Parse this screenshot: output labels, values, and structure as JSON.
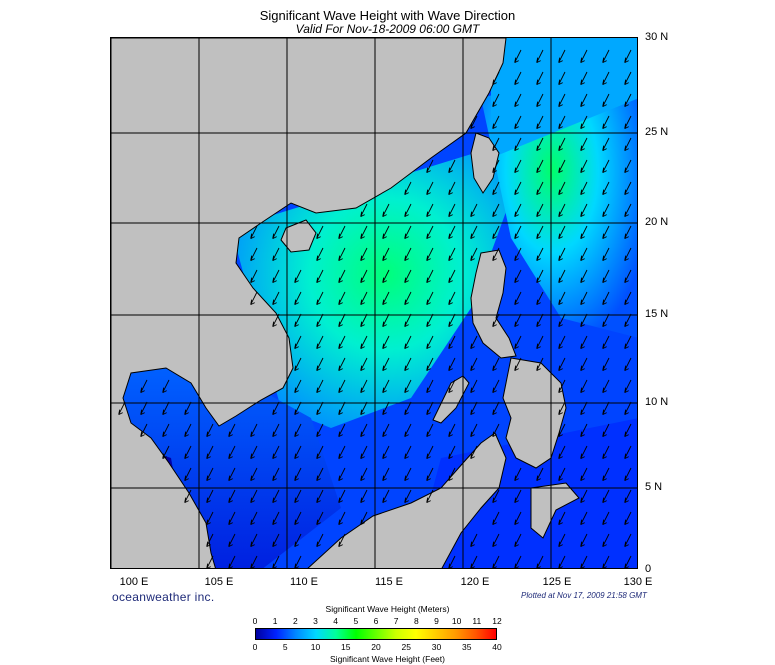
{
  "header": {
    "title": "Significant Wave Height with Wave Direction",
    "subtitle": "Valid For Nov-18-2009 06:00 GMT"
  },
  "map": {
    "lon_range": [
      100,
      130
    ],
    "lat_range": [
      0,
      30
    ],
    "lon_labels": [
      "100 E",
      "105 E",
      "110 E",
      "115 E",
      "120 E",
      "125 E",
      "130 E"
    ],
    "lat_labels": [
      "30 N",
      "25 N",
      "20 N",
      "15 N",
      "10 N",
      "5 N",
      "0"
    ],
    "grid_lon": [
      105,
      110,
      115,
      120,
      125
    ],
    "grid_lat": [
      5,
      10,
      15,
      20,
      25
    ],
    "land_color": "#c0c0c0",
    "wave_direction": "arrows point toward the southwest (NE monsoon)"
  },
  "footer": {
    "brand": "oceanweather inc.",
    "plotted": "Plotted at Nov 17, 2009 21:58 GMT"
  },
  "colorbar": {
    "meters_title": "Significant Wave Height (Meters)",
    "feet_title": "Significant Wave Height (Feet)",
    "meters_ticks": [
      "0",
      "1",
      "2",
      "3",
      "4",
      "5",
      "6",
      "7",
      "8",
      "9",
      "10",
      "11",
      "12"
    ],
    "feet_ticks": [
      "0",
      "5",
      "10",
      "15",
      "20",
      "25",
      "30",
      "35",
      "40"
    ],
    "colors": [
      "#0000a0",
      "#0022ff",
      "#0088ff",
      "#00d8ff",
      "#00ff99",
      "#00ff00",
      "#66ff00",
      "#ccff00",
      "#ffff00",
      "#ffcc00",
      "#ff9900",
      "#ff5500",
      "#ff0000"
    ]
  }
}
